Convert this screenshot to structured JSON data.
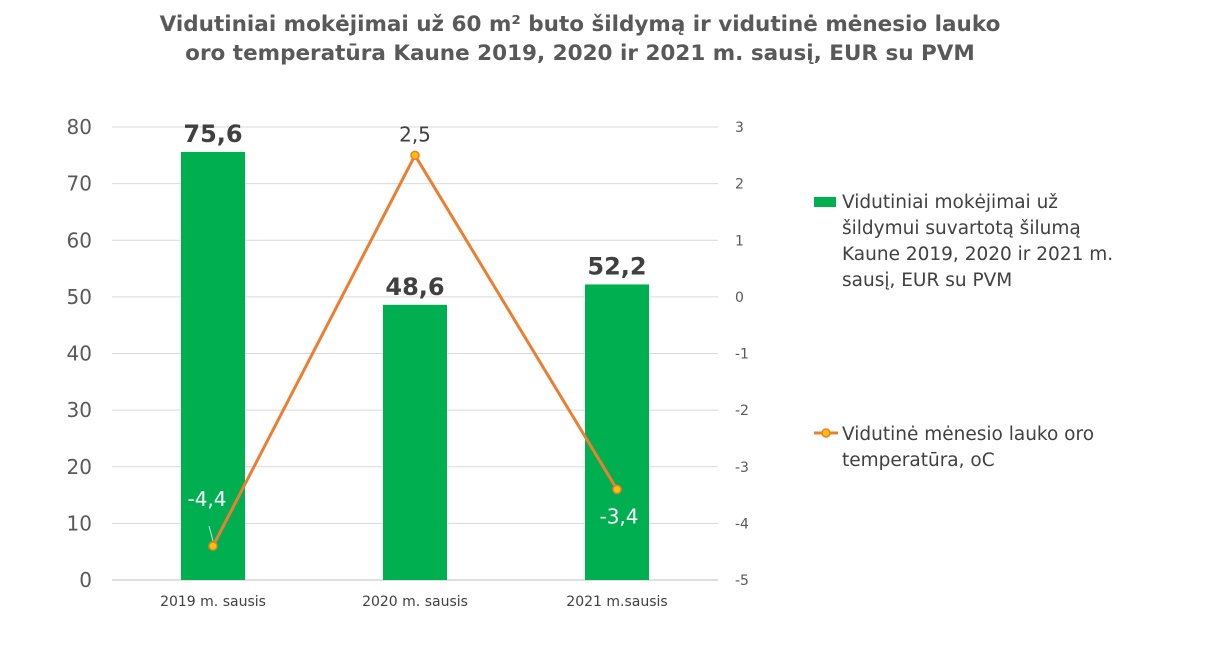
{
  "chart_data": {
    "type": "bar",
    "title_lines": [
      "Vidutiniai mokėjimai už 60 m² buto šildymą ir vidutinė mėnesio lauko",
      "oro temperatūra Kaune 2019, 2020 ir 2021 m. sausį, EUR su PVM"
    ],
    "categories": [
      "2019 m. sausis",
      "2020 m. sausis",
      "2021 m.sausis"
    ],
    "series": [
      {
        "name": "Vidutiniai mokėjimai už šildymui suvartotą šilumą Kaune 2019, 2020 ir 2021 m. sausį, EUR su PVM",
        "legend_lines": [
          "Vidutiniai mokėjimai už",
          "šildymui suvartotą šilumą",
          "Kaune 2019, 2020 ir 2021 m.",
          "sausį, EUR su PVM"
        ],
        "kind": "bar",
        "axis": "left",
        "values": [
          75.6,
          48.6,
          52.2
        ],
        "labels": [
          "75,6",
          "48,6",
          "52,2"
        ],
        "color": "#00B050"
      },
      {
        "name": "Vidutinė mėnesio lauko oro temperatūra, oC",
        "legend_lines": [
          "Vidutinė mėnesio lauko oro",
          "temperatūra, oC"
        ],
        "kind": "line",
        "axis": "right",
        "values": [
          -4.4,
          2.5,
          -3.4
        ],
        "labels": [
          "-4,4",
          "2,5",
          "-3,4"
        ],
        "color": "#ED7D31",
        "marker_color": "#FFC000"
      }
    ],
    "y_left": {
      "min": 0,
      "max": 80,
      "ticks": [
        "0",
        "10",
        "20",
        "30",
        "40",
        "50",
        "60",
        "70",
        "80"
      ]
    },
    "y_right": {
      "min": -5,
      "max": 3,
      "ticks": [
        "-5",
        "-4",
        "-3",
        "-2",
        "-1",
        "0",
        "1",
        "2",
        "3"
      ]
    },
    "grid": true,
    "legend_position": "right"
  }
}
